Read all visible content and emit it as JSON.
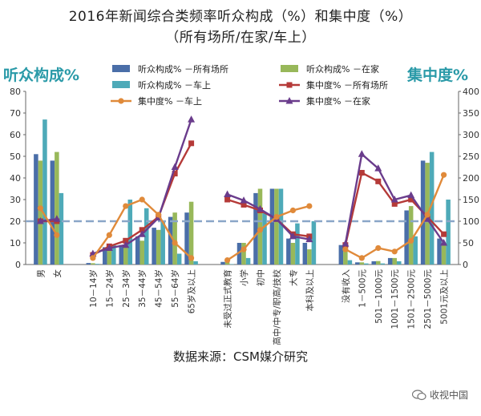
{
  "title_line1": "2016年新闻综合类频率听众构成（%）和集中度（%）",
  "title_line2": "（所有场所/在家/车上）",
  "source": "数据来源：CSM媒介研究",
  "watermark": "收视中国",
  "colors": {
    "bar_all": "#4a6ea8",
    "bar_home": "#98b85a",
    "bar_car": "#4eaab8",
    "line_all": "#b53a38",
    "line_home": "#6a3c8c",
    "line_car": "#e08a3a",
    "ref_line": "#8aa6c8",
    "axis_title": "#2a9aa8"
  },
  "chart_data": {
    "type": "bar",
    "title": "2016年新闻综合类频率听众构成（%）和集中度（%）",
    "subtitle": "（所有场所/在家/车上）",
    "ylabel_left": "听众构成%",
    "ylabel_right": "集中度%",
    "ylim_left": [
      0,
      80
    ],
    "ylim_right": [
      0,
      400
    ],
    "yticks_left": [
      0,
      10,
      20,
      30,
      40,
      50,
      60,
      70,
      80
    ],
    "yticks_right": [
      0,
      50,
      100,
      150,
      200,
      250,
      300,
      350,
      400
    ],
    "reference_line": 100,
    "legend_position": "top",
    "groups": [
      {
        "categories": [
          "男",
          "女"
        ]
      },
      {
        "categories": [
          "10－14岁",
          "15－24岁",
          "25－34岁",
          "35－44岁",
          "45－54岁",
          "55－64岁",
          "65岁及以上"
        ]
      },
      {
        "categories": [
          "未受过正式教育",
          "小学",
          "初中",
          "高中/中专/职高/技校",
          "大专",
          "本科及以上"
        ]
      },
      {
        "categories": [
          "没有收入",
          "1－500元",
          "501－1000元",
          "1001－1500元",
          "1501－2500元",
          "2501－5000元",
          "5001元及以上"
        ]
      }
    ],
    "categories": [
      "男",
      "女",
      "10－14岁",
      "15－24岁",
      "25－34岁",
      "35－44岁",
      "45－54岁",
      "55－64岁",
      "65岁及以上",
      "未受过正式教育",
      "小学",
      "初中",
      "高中/中专/职高/技校",
      "大专",
      "本科及以上",
      "没有收入",
      "1－500元",
      "501－1000元",
      "1001－1500元",
      "1501－2500元",
      "2501－5000元",
      "5001元及以上"
    ],
    "series": [
      {
        "name": "听众构成% －所有场所",
        "type": "bar",
        "axis": "left",
        "values": [
          51,
          48,
          0.7,
          8,
          9,
          13,
          17,
          22,
          24,
          1.2,
          10,
          33,
          35,
          12,
          10,
          9,
          1,
          1.5,
          3,
          25,
          48,
          12
        ]
      },
      {
        "name": "听众构成% －在家",
        "type": "bar",
        "axis": "left",
        "values": [
          48,
          52,
          0.6,
          7,
          8,
          11,
          16,
          24,
          29,
          1.5,
          10,
          35,
          35,
          10,
          7,
          9,
          1,
          1.6,
          3,
          27,
          47,
          10
        ]
      },
      {
        "name": "听众构成% －车上",
        "type": "bar",
        "axis": "left",
        "values": [
          67,
          33,
          0.3,
          9,
          30,
          26,
          20,
          5,
          1.5,
          0.2,
          3,
          24,
          35,
          19,
          20,
          2,
          0.5,
          0.5,
          1.5,
          13,
          52,
          30
        ]
      },
      {
        "name": "集中度% －所有场所",
        "type": "line",
        "axis": "right",
        "values": [
          100,
          100,
          22,
          42,
          55,
          80,
          110,
          210,
          280,
          150,
          138,
          125,
          105,
          70,
          65,
          45,
          212,
          192,
          140,
          150,
          110,
          70
        ]
      },
      {
        "name": "集中度% －在家",
        "type": "line",
        "axis": "right",
        "values": [
          100,
          105,
          25,
          38,
          45,
          70,
          108,
          225,
          335,
          162,
          148,
          128,
          105,
          65,
          58,
          48,
          255,
          222,
          150,
          160,
          105,
          50
        ]
      },
      {
        "name": "集中度% －车上",
        "type": "line",
        "axis": "right",
        "values": [
          130,
          68,
          15,
          68,
          135,
          150,
          115,
          50,
          15,
          10,
          35,
          80,
          110,
          125,
          135,
          35,
          15,
          38,
          30,
          55,
          115,
          207
        ]
      }
    ]
  }
}
